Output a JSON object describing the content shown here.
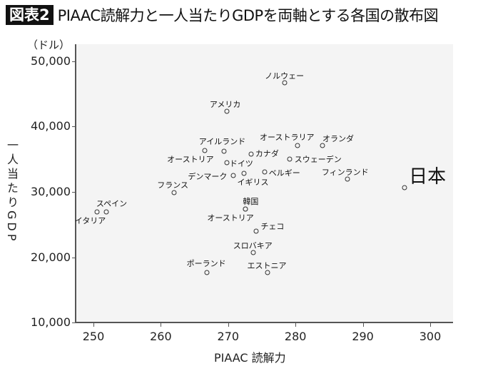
{
  "header": {
    "badge": "図表2",
    "title": "PIAAC読解力と一人当たりGDPを両軸とする各国の散布図"
  },
  "chart_data": {
    "type": "scatter",
    "title": "PIAAC読解力と一人当たりGDPを両軸とする各国の散布図",
    "xlabel": "PIAAC 読解力",
    "ylabel": "一人当たりGDP",
    "yunit": "（ドル）",
    "xlim": [
      247,
      303.5
    ],
    "ylim": [
      10000,
      52500
    ],
    "xticks": [
      250,
      260,
      270,
      280,
      290,
      300
    ],
    "yticks": [
      10000,
      20000,
      30000,
      40000,
      50000
    ],
    "xtick_labels": [
      "250",
      "260",
      "270",
      "280",
      "290",
      "300"
    ],
    "ytick_labels": [
      "10,000",
      "20,000",
      "30,000",
      "40,000",
      "50,000"
    ],
    "grid": false,
    "legend": null,
    "points": [
      {
        "name": "イタリア",
        "x": 250.5,
        "y": 26950,
        "lx": -31,
        "ly": 4,
        "size": "small"
      },
      {
        "name": "スペイン",
        "x": 251.9,
        "y": 26950,
        "lx": -14,
        "ly": -20,
        "size": "small"
      },
      {
        "name": "フランス",
        "x": 262.0,
        "y": 29900,
        "lx": -24,
        "ly": -19,
        "size": "small"
      },
      {
        "name": "アイルランド",
        "x": 266.5,
        "y": 36300,
        "lx": -8,
        "ly": -21,
        "size": "small"
      },
      {
        "name": "オーストリア",
        "x": 269.4,
        "y": 36200,
        "lx": -80,
        "ly": 3,
        "size": "small"
      },
      {
        "name": "ドイツ",
        "x": 269.8,
        "y": 34500,
        "lx": 4,
        "ly": -7,
        "size": "small"
      },
      {
        "name": "アメリカ",
        "x": 269.8,
        "y": 42300,
        "lx": -24,
        "ly": -18,
        "size": "small"
      },
      {
        "name": "デンマーク",
        "x": 270.8,
        "y": 32500,
        "lx": -64,
        "ly": -7,
        "size": "small"
      },
      {
        "name": "イギリス",
        "x": 272.4,
        "y": 32800,
        "lx": -10,
        "ly": 4,
        "size": "small"
      },
      {
        "name": "カナダ",
        "x": 273.4,
        "y": 35800,
        "lx": 6,
        "ly": -9,
        "size": "small"
      },
      {
        "name": "韓国",
        "x": 272.6,
        "y": 27400,
        "lx": -4,
        "ly": -19,
        "size": "small"
      },
      {
        "name": "オーストリア",
        "x": 272.6,
        "y": 27400,
        "lx": -54,
        "ly": 4,
        "size": "small"
      },
      {
        "name": "チェコ",
        "x": 274.2,
        "y": 24000,
        "lx": 6,
        "ly": -15,
        "size": "small"
      },
      {
        "name": "スロバキア",
        "x": 273.7,
        "y": 20700,
        "lx": -28,
        "ly": -18,
        "size": "small"
      },
      {
        "name": "ポーランド",
        "x": 266.8,
        "y": 17700,
        "lx": -28,
        "ly": -21,
        "size": "small"
      },
      {
        "name": "エストニア",
        "x": 275.8,
        "y": 17700,
        "lx": -28,
        "ly": -18,
        "size": "small"
      },
      {
        "name": "ベルギー",
        "x": 275.4,
        "y": 33100,
        "lx": 6,
        "ly": -7,
        "size": "small"
      },
      {
        "name": "スウェーデン",
        "x": 279.1,
        "y": 35000,
        "lx": 7,
        "ly": -8,
        "size": "small"
      },
      {
        "name": "ノルウェー",
        "x": 278.4,
        "y": 46700,
        "lx": -28,
        "ly": -18,
        "size": "small"
      },
      {
        "name": "オーストラリア",
        "x": 280.3,
        "y": 37100,
        "lx": -53,
        "ly": -20,
        "size": "small"
      },
      {
        "name": "オランダ",
        "x": 284.0,
        "y": 37100,
        "lx": 0,
        "ly": -18,
        "size": "small"
      },
      {
        "name": "フィンランド",
        "x": 287.7,
        "y": 32000,
        "lx": -36,
        "ly": -18,
        "size": "small"
      },
      {
        "name": "日本",
        "x": 296.2,
        "y": 30700,
        "lx": 6,
        "ly": -36,
        "size": "big"
      }
    ]
  },
  "colors": {
    "plot_bg": "#f4f4f4",
    "axis": "#555555",
    "badge_bg": "#111111",
    "badge_fg": "#ffffff"
  }
}
